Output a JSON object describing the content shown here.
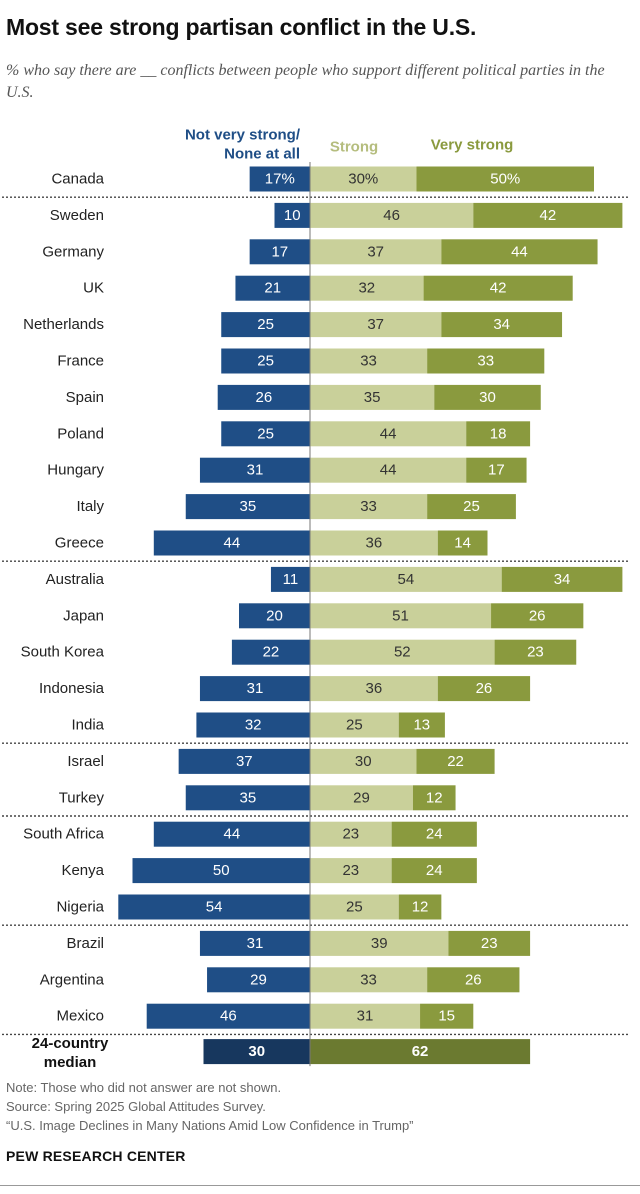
{
  "title": "Most see strong partisan conflict in the U.S.",
  "subtitle": "% who say there are __ conflicts between people who support different political parties in the U.S.",
  "notes": [
    "Note: Those who did not answer are not shown.",
    "Source: Spring 2025 Global Attitudes Survey.",
    "“U.S. Image Declines in Many Nations Amid Low Confidence in Trump”"
  ],
  "brand": "PEW RESEARCH CENTER",
  "colors": {
    "not_strong": "#1f4e86",
    "strong": "#c9d09a",
    "very_strong": "#8a9a3e",
    "median_not_strong": "#17375e",
    "median_strong": "#6b7a30"
  },
  "chart_data": {
    "type": "bar",
    "orientation": "horizontal diverging stacked",
    "legend": [
      "Not very strong/ None at all",
      "Strong",
      "Very strong"
    ],
    "categories": [
      "Canada",
      "Sweden",
      "Germany",
      "UK",
      "Netherlands",
      "France",
      "Spain",
      "Poland",
      "Hungary",
      "Italy",
      "Greece",
      "Australia",
      "Japan",
      "South Korea",
      "Indonesia",
      "India",
      "Israel",
      "Turkey",
      "South Africa",
      "Kenya",
      "Nigeria",
      "Brazil",
      "Argentina",
      "Mexico"
    ],
    "series": [
      {
        "name": "Not very strong/ None at all",
        "values": [
          17,
          10,
          17,
          21,
          25,
          25,
          26,
          25,
          31,
          35,
          44,
          11,
          20,
          22,
          31,
          32,
          37,
          35,
          44,
          50,
          54,
          31,
          29,
          46
        ]
      },
      {
        "name": "Strong",
        "values": [
          30,
          46,
          37,
          32,
          37,
          33,
          35,
          44,
          44,
          33,
          36,
          54,
          51,
          52,
          36,
          25,
          30,
          29,
          23,
          23,
          25,
          39,
          33,
          31
        ]
      },
      {
        "name": "Very strong",
        "values": [
          50,
          42,
          44,
          42,
          34,
          33,
          30,
          18,
          17,
          25,
          14,
          34,
          26,
          23,
          26,
          13,
          22,
          12,
          24,
          24,
          12,
          23,
          26,
          15
        ]
      }
    ],
    "percent_sign_first_row": true,
    "region_dividers_after": [
      "Canada",
      "Greece",
      "India",
      "Turkey",
      "Nigeria",
      "Mexico"
    ],
    "median": {
      "label": "24-country median",
      "not_strong": 30,
      "strong_total": 62
    }
  }
}
